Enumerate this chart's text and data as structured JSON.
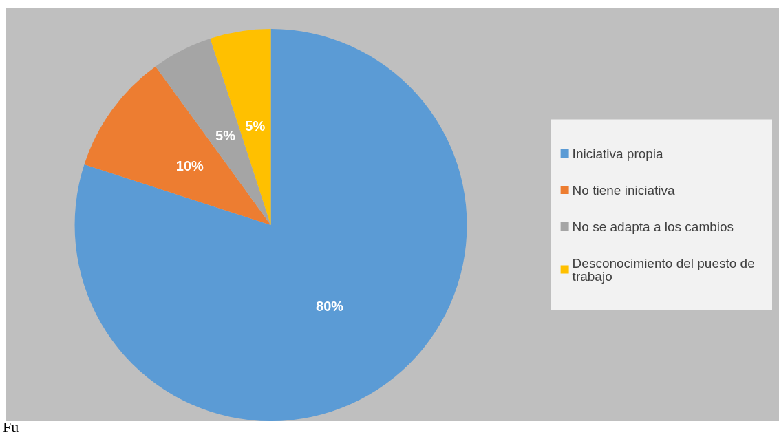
{
  "chart_data": {
    "type": "pie",
    "categories": [
      "Iniciativa propia",
      "No tiene iniciativa",
      "No se adapta a los cambios",
      "Desconocimiento del puesto de trabajo"
    ],
    "values": [
      80,
      10,
      5,
      5
    ],
    "colors": [
      "#5b9bd5",
      "#ed7d31",
      "#a5a5a5",
      "#ffc000"
    ],
    "value_labels": [
      "80%",
      "10%",
      "5%",
      "5%"
    ],
    "legend": "right",
    "annotations": [
      "Fu"
    ]
  }
}
